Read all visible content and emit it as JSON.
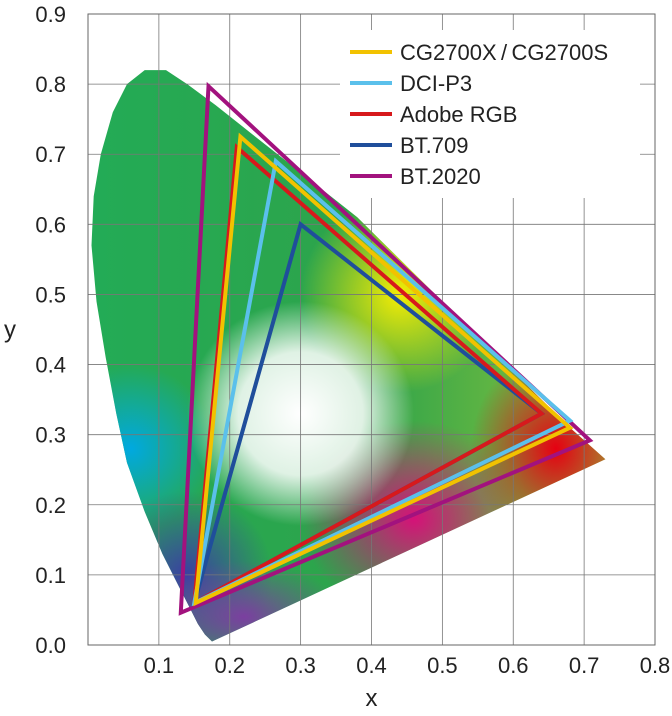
{
  "chart_data": {
    "type": "scatter",
    "title": "",
    "xlabel": "x",
    "ylabel": "y",
    "xlim": [
      0.0,
      0.8
    ],
    "ylim": [
      0.0,
      0.9
    ],
    "grid": true,
    "legend_position": "top-right",
    "x_ticks": [
      "0.1",
      "0.2",
      "0.3",
      "0.4",
      "0.5",
      "0.6",
      "0.7",
      "0.8"
    ],
    "y_ticks": [
      "0.0",
      "0.1",
      "0.2",
      "0.3",
      "0.4",
      "0.5",
      "0.6",
      "0.7",
      "0.8",
      "0.9"
    ],
    "spectral_locus": [
      [
        0.175,
        0.005
      ],
      [
        0.165,
        0.015
      ],
      [
        0.155,
        0.03
      ],
      [
        0.145,
        0.05
      ],
      [
        0.13,
        0.08
      ],
      [
        0.105,
        0.13
      ],
      [
        0.08,
        0.19
      ],
      [
        0.055,
        0.26
      ],
      [
        0.04,
        0.33
      ],
      [
        0.025,
        0.41
      ],
      [
        0.012,
        0.49
      ],
      [
        0.005,
        0.57
      ],
      [
        0.008,
        0.64
      ],
      [
        0.018,
        0.7
      ],
      [
        0.035,
        0.76
      ],
      [
        0.055,
        0.8
      ],
      [
        0.08,
        0.82
      ],
      [
        0.11,
        0.82
      ],
      [
        0.14,
        0.8
      ],
      [
        0.18,
        0.77
      ],
      [
        0.23,
        0.73
      ],
      [
        0.28,
        0.69
      ],
      [
        0.33,
        0.65
      ],
      [
        0.38,
        0.61
      ],
      [
        0.43,
        0.56
      ],
      [
        0.48,
        0.51
      ],
      [
        0.53,
        0.46
      ],
      [
        0.58,
        0.41
      ],
      [
        0.63,
        0.36
      ],
      [
        0.68,
        0.31
      ],
      [
        0.73,
        0.265
      ],
      [
        0.175,
        0.005
      ]
    ],
    "series": [
      {
        "name": "CG2700X / CG2700S",
        "color": "#F2C200",
        "points": [
          [
            0.68,
            0.31
          ],
          [
            0.215,
            0.725
          ],
          [
            0.152,
            0.06
          ]
        ]
      },
      {
        "name": "DCI-P3",
        "color": "#5BC0EB",
        "points": [
          [
            0.68,
            0.32
          ],
          [
            0.265,
            0.69
          ],
          [
            0.15,
            0.06
          ]
        ]
      },
      {
        "name": "Adobe RGB",
        "color": "#D7191C",
        "points": [
          [
            0.64,
            0.33
          ],
          [
            0.21,
            0.71
          ],
          [
            0.15,
            0.06
          ]
        ]
      },
      {
        "name": "BT.709",
        "color": "#1F4E9B",
        "points": [
          [
            0.64,
            0.33
          ],
          [
            0.3,
            0.6
          ],
          [
            0.15,
            0.06
          ]
        ]
      },
      {
        "name": "BT.2020",
        "color": "#A2127E",
        "points": [
          [
            0.708,
            0.292
          ],
          [
            0.17,
            0.797
          ],
          [
            0.131,
            0.046
          ]
        ]
      }
    ],
    "white_point": [
      0.3127,
      0.329
    ]
  }
}
